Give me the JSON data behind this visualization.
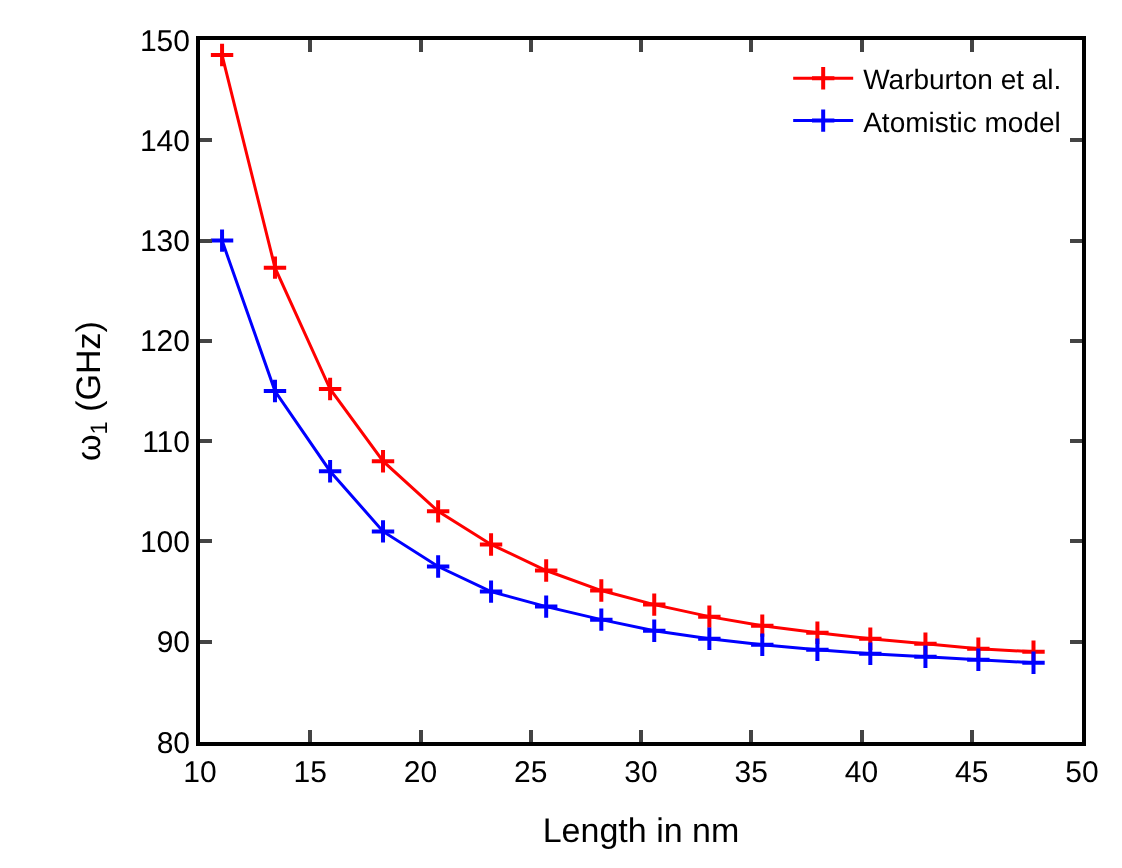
{
  "chart_data": {
    "type": "line",
    "xlabel": "Length in nm",
    "ylabel": "ω$_{1}$ (GHz)",
    "x": [
      11.0,
      13.4,
      15.9,
      18.3,
      20.8,
      23.2,
      25.7,
      28.2,
      30.6,
      33.1,
      35.5,
      38.0,
      40.4,
      42.9,
      45.3,
      47.8
    ],
    "series": [
      {
        "name": "Warburton et al.",
        "color": "#ff0000",
        "values": [
          148.5,
          127.3,
          115.2,
          108,
          103,
          99.7,
          97.1,
          95.1,
          93.7,
          92.5,
          91.6,
          90.9,
          90.3,
          89.8,
          89.3,
          89
        ]
      },
      {
        "name": "Atomistic model",
        "color": "#0000ff",
        "values": [
          130,
          115,
          107,
          101,
          97.5,
          95,
          93.5,
          92.2,
          91.1,
          90.3,
          89.7,
          89.2,
          88.8,
          88.5,
          88.2,
          87.9
        ]
      }
    ],
    "xlim": [
      10,
      50
    ],
    "xticks": [
      10,
      15,
      20,
      25,
      30,
      35,
      40,
      45,
      50
    ],
    "ylim": [
      80,
      150
    ],
    "yticks": [
      80,
      90,
      100,
      110,
      120,
      130,
      140,
      150
    ],
    "legend": "top right",
    "marker": "cross",
    "line_style": "solid"
  }
}
